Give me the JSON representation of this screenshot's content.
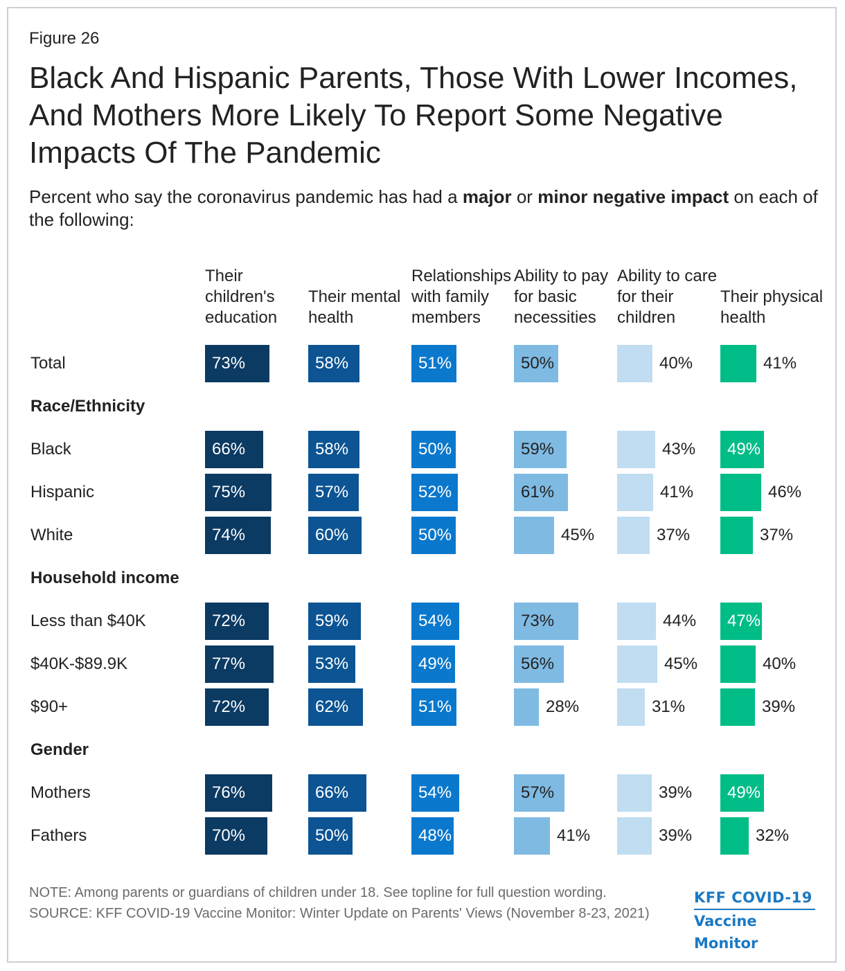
{
  "figure_label": "Figure 26",
  "title": "Black And Hispanic Parents, Those With Lower Incomes, And Mothers More Likely To Report Some Negative Impacts Of The Pandemic",
  "subtitle": {
    "part1": "Percent who say the coronavirus pandemic has had a ",
    "bold1": "major",
    "part2": " or ",
    "bold2": "minor negative impact",
    "part3": " on each of the following:"
  },
  "chart_data": {
    "type": "bar",
    "title": "Black And Hispanic Parents, Those With Lower Incomes, And Mothers More Likely To Report Some Negative Impacts Of The Pandemic",
    "value_suffix": "%",
    "xlim": [
      0,
      100
    ],
    "columns": [
      {
        "name": "Their children's education",
        "color": "#0b3a62",
        "text_on_bar": "#ffffff"
      },
      {
        "name": "Their mental health",
        "color": "#0c5493",
        "text_on_bar": "#ffffff"
      },
      {
        "name": "Relationships with family members",
        "color": "#0a78cc",
        "text_on_bar": "#ffffff"
      },
      {
        "name": "Ability to pay for basic necessities",
        "color": "#7fbae3",
        "text_on_bar": "#222222"
      },
      {
        "name": "Ability to care for their children",
        "color": "#c0ddf1",
        "text_on_bar": "#222222"
      },
      {
        "name": "Their physical health",
        "color": "#00bd87",
        "text_on_bar": "#ffffff"
      }
    ],
    "rows": [
      {
        "kind": "row",
        "label": "Total",
        "values": [
          73,
          58,
          51,
          50,
          40,
          41
        ]
      },
      {
        "kind": "group",
        "label": "Race/Ethnicity"
      },
      {
        "kind": "row",
        "label": "Black",
        "values": [
          66,
          58,
          50,
          59,
          43,
          49
        ]
      },
      {
        "kind": "row",
        "label": "Hispanic",
        "values": [
          75,
          57,
          52,
          61,
          41,
          46
        ]
      },
      {
        "kind": "row",
        "label": "White",
        "values": [
          74,
          60,
          50,
          45,
          37,
          37
        ]
      },
      {
        "kind": "group",
        "label": "Household income"
      },
      {
        "kind": "row",
        "label": "Less than $40K",
        "values": [
          72,
          59,
          54,
          73,
          44,
          47
        ]
      },
      {
        "kind": "row",
        "label": "$40K-$89.9K",
        "values": [
          77,
          53,
          49,
          56,
          45,
          40
        ]
      },
      {
        "kind": "row",
        "label": "$90+",
        "values": [
          72,
          62,
          51,
          28,
          31,
          39
        ]
      },
      {
        "kind": "group",
        "label": "Gender"
      },
      {
        "kind": "row",
        "label": "Mothers",
        "values": [
          76,
          66,
          54,
          57,
          39,
          49
        ]
      },
      {
        "kind": "row",
        "label": "Fathers",
        "values": [
          70,
          50,
          48,
          41,
          39,
          32
        ]
      }
    ]
  },
  "footnotes": {
    "note": "NOTE: Among parents or guardians of children under 18. See topline for full question wording.",
    "source": "SOURCE: KFF COVID-19 Vaccine Monitor: Winter Update on Parents' Views (November 8-23, 2021)"
  },
  "logo": {
    "line1": "KFF COVID-19",
    "line2": "Vaccine Monitor"
  }
}
